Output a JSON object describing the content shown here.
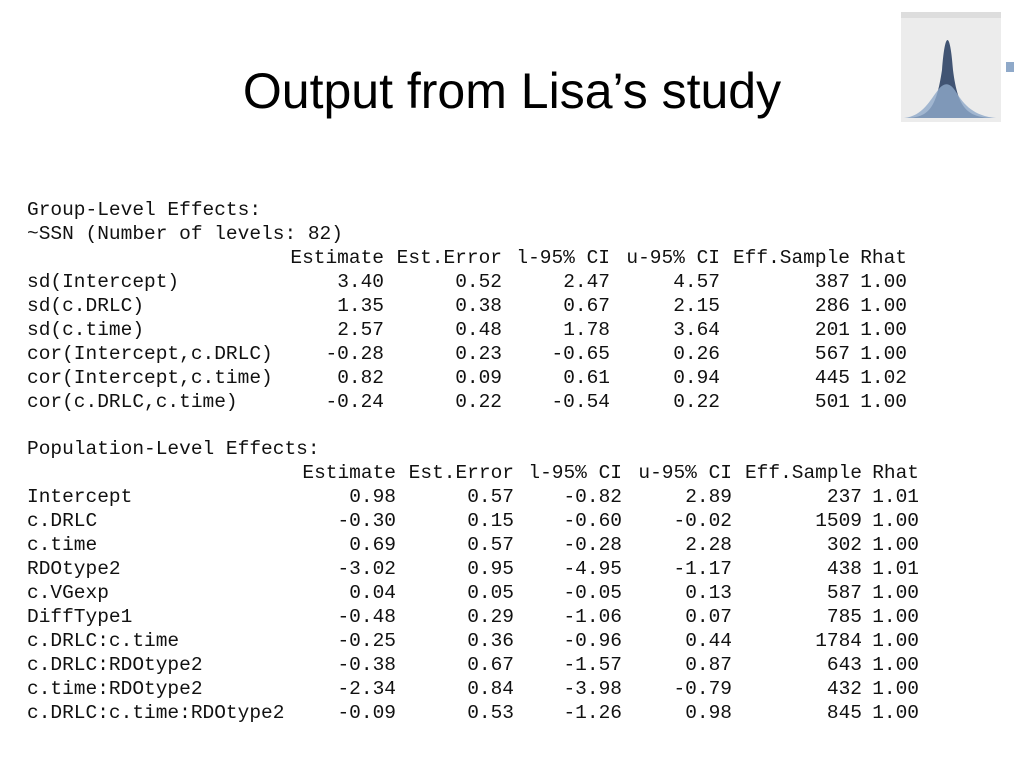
{
  "title": "Output from Lisa’s study",
  "group": {
    "heading": "Group-Level Effects:",
    "subheading": "~SSN (Number of levels: 82)",
    "columns": [
      "Estimate",
      "Est.Error",
      "l-95% CI",
      "u-95% CI",
      "Eff.Sample",
      "Rhat"
    ],
    "rows": [
      {
        "label": "sd(Intercept)",
        "values": [
          "3.40",
          "0.52",
          "2.47",
          "4.57",
          "387",
          "1.00"
        ]
      },
      {
        "label": "sd(c.DRLC)",
        "values": [
          "1.35",
          "0.38",
          "0.67",
          "2.15",
          "286",
          "1.00"
        ]
      },
      {
        "label": "sd(c.time)",
        "values": [
          "2.57",
          "0.48",
          "1.78",
          "3.64",
          "201",
          "1.00"
        ]
      },
      {
        "label": "cor(Intercept,c.DRLC)",
        "values": [
          "-0.28",
          "0.23",
          "-0.65",
          "0.26",
          "567",
          "1.00"
        ]
      },
      {
        "label": "cor(Intercept,c.time)",
        "values": [
          "0.82",
          "0.09",
          "0.61",
          "0.94",
          "445",
          "1.02"
        ]
      },
      {
        "label": "cor(c.DRLC,c.time)",
        "values": [
          "-0.24",
          "0.22",
          "-0.54",
          "0.22",
          "501",
          "1.00"
        ]
      }
    ]
  },
  "population": {
    "heading": "Population-Level Effects:",
    "columns": [
      "Estimate",
      "Est.Error",
      "l-95% CI",
      "u-95% CI",
      "Eff.Sample",
      "Rhat"
    ],
    "rows": [
      {
        "label": "Intercept",
        "values": [
          "0.98",
          "0.57",
          "-0.82",
          "2.89",
          "237",
          "1.01"
        ]
      },
      {
        "label": "c.DRLC",
        "values": [
          "-0.30",
          "0.15",
          "-0.60",
          "-0.02",
          "1509",
          "1.00"
        ]
      },
      {
        "label": "c.time",
        "values": [
          "0.69",
          "0.57",
          "-0.28",
          "2.28",
          "302",
          "1.00"
        ]
      },
      {
        "label": "RDOtype2",
        "values": [
          "-3.02",
          "0.95",
          "-4.95",
          "-1.17",
          "438",
          "1.01"
        ]
      },
      {
        "label": "c.VGexp",
        "values": [
          "0.04",
          "0.05",
          "-0.05",
          "0.13",
          "587",
          "1.00"
        ]
      },
      {
        "label": "DiffType1",
        "values": [
          "-0.48",
          "0.29",
          "-1.06",
          "0.07",
          "785",
          "1.00"
        ]
      },
      {
        "label": "c.DRLC:c.time",
        "values": [
          "-0.25",
          "0.36",
          "-0.96",
          "0.44",
          "1784",
          "1.00"
        ]
      },
      {
        "label": "c.DRLC:RDOtype2",
        "values": [
          "-0.38",
          "0.67",
          "-1.57",
          "0.87",
          "643",
          "1.00"
        ]
      },
      {
        "label": "c.time:RDOtype2",
        "values": [
          "-2.34",
          "0.84",
          "-3.98",
          "-0.79",
          "432",
          "1.00"
        ]
      },
      {
        "label": "c.DRLC:c.time:RDOtype2",
        "values": [
          "-0.09",
          "0.53",
          "-1.26",
          "0.98",
          "845",
          "1.00"
        ]
      }
    ]
  }
}
